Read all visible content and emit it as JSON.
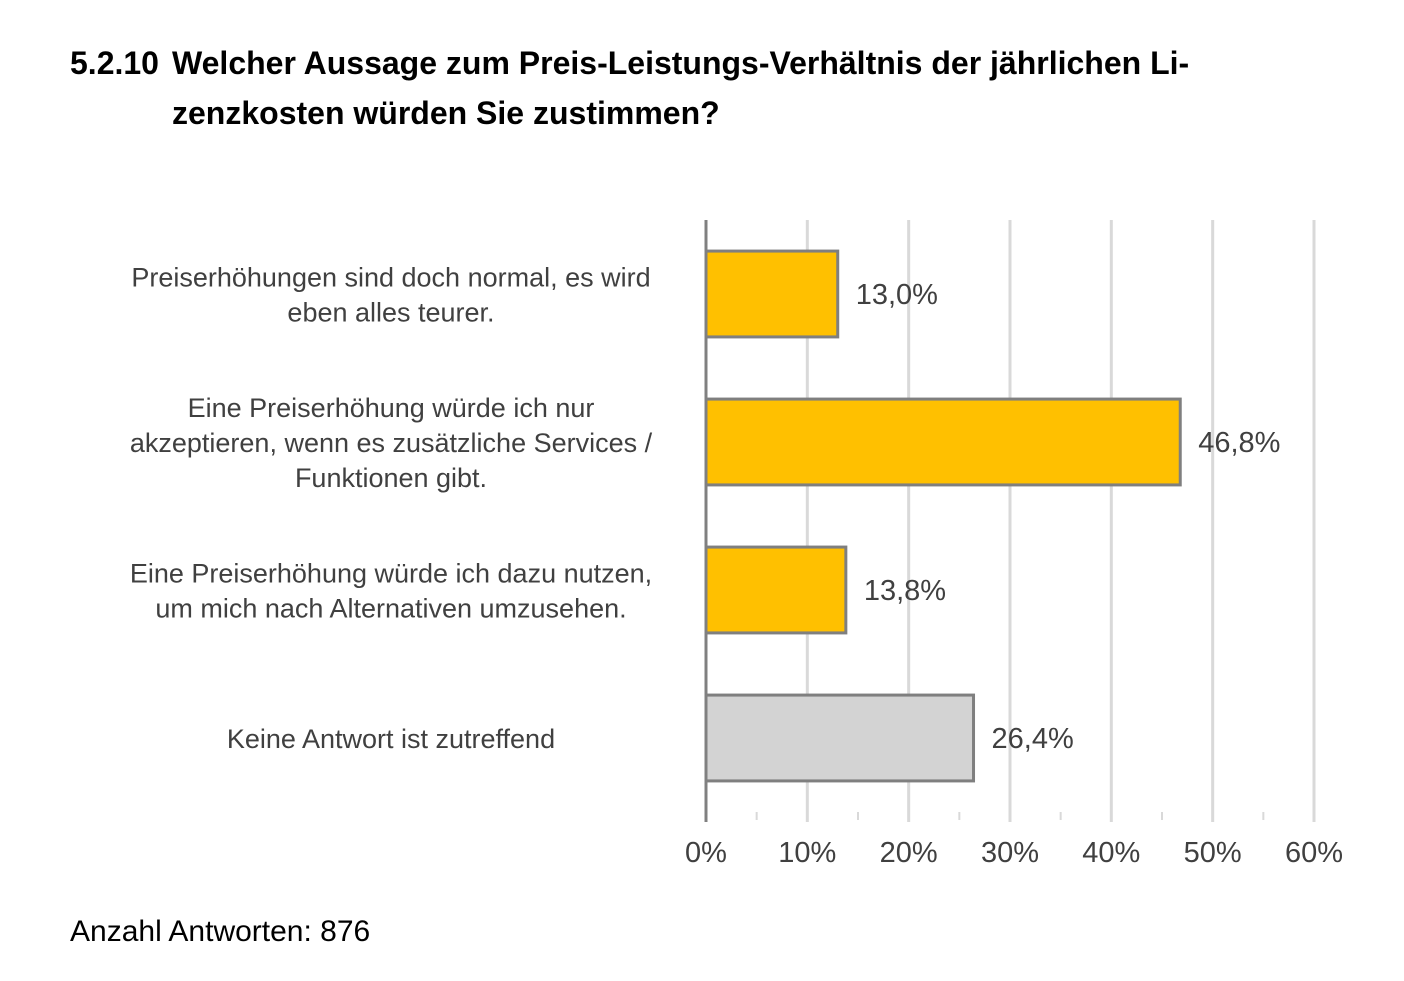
{
  "title": {
    "number": "5.2.10",
    "text": "Welcher Aussage zum Preis-Leistungs-Verhältnis der jährlichen Li-\nzenzkosten würden Sie zustimmen?"
  },
  "chart_data": {
    "type": "bar",
    "orientation": "horizontal",
    "categories": [
      [
        "Preiserhöhungen sind doch normal, es wird",
        "eben alles teurer."
      ],
      [
        "Eine Preiserhöhung würde ich nur",
        "akzeptieren, wenn es zusätzliche Services /",
        "Funktionen gibt."
      ],
      [
        "Eine Preiserhöhung würde ich dazu nutzen,",
        "um mich nach Alternativen umzusehen."
      ],
      [
        "Keine Antwort ist zutreffend"
      ]
    ],
    "values": [
      13.0,
      46.8,
      13.8,
      26.4
    ],
    "data_labels": [
      "13,0%",
      "46,8%",
      "13,8%",
      "26,4%"
    ],
    "bar_colors": [
      "#FFC000",
      "#FFC000",
      "#FFC000",
      "#D3D3D3"
    ],
    "bar_stroke": "#7F7F7F",
    "xlim": [
      0,
      60
    ],
    "xticks": [
      0,
      10,
      20,
      30,
      40,
      50,
      60
    ],
    "xtick_labels": [
      "0%",
      "10%",
      "20%",
      "30%",
      "40%",
      "50%",
      "60%"
    ],
    "grid": true,
    "xlabel": "",
    "ylabel": ""
  },
  "footer": {
    "label": "Anzahl Antworten: 876"
  }
}
